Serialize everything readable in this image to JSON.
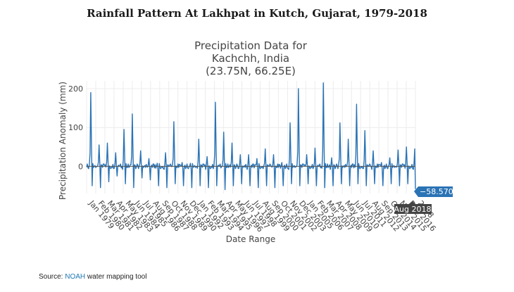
{
  "header": {
    "title": "Rainfall Pattern At Lakhpat in Kutch, Gujarat, 1979-2018"
  },
  "source": {
    "prefix": "Source: ",
    "link": "NOAH",
    "suffix": " water mapping tool"
  },
  "colors": {
    "series": "#2a73b5",
    "hover_bg": "#2a73b5",
    "hover_date_bg": "#444444",
    "grid": "#ececec"
  },
  "chart_data": {
    "type": "line",
    "title_lines": [
      "Precipitation Data for",
      "Kachchh, India",
      "(23.75N, 66.25E)"
    ],
    "xlabel": "Date Range",
    "ylabel": "Precipitation Anomaly (mm)",
    "ylim": [
      -70,
      220
    ],
    "yticks": [
      0,
      100,
      200
    ],
    "x_tick_labels": [
      "Jan 1979",
      "Feb 1980",
      "Mar 1981",
      "Apr 1982",
      "May 1983",
      "Jun 1984",
      "Jul 1985",
      "Aug 1986",
      "Sep 1987",
      "Oct 1988",
      "Nov 1989",
      "Dec 1990",
      "Jan 1992",
      "Feb 1993",
      "Mar 1994",
      "Apr 1995",
      "May 1996",
      "Jun 1997",
      "Jul 1998",
      "Aug 1999",
      "Sep 2000",
      "Oct 2001",
      "Nov 2002",
      "Dec 2003",
      "Jan 2005",
      "Feb 2006",
      "Mar 2007",
      "Apr 2008",
      "May 2009",
      "Jun 2010",
      "Jul 2011",
      "Aug 2012",
      "Sep 2013",
      "Oct 2014",
      "Nov 2015",
      "Dec 2016",
      "2018"
    ],
    "series": [
      {
        "name": "Precipitation anomaly",
        "start": "1979-01",
        "end": "2018-08",
        "monsoon_peaks": [
          {
            "year": 1979,
            "peak": 190,
            "low": -50
          },
          {
            "year": 1980,
            "peak": 55,
            "low": -55
          },
          {
            "year": 1981,
            "peak": 60,
            "low": -40
          },
          {
            "year": 1982,
            "peak": 35,
            "low": -25
          },
          {
            "year": 1983,
            "peak": 95,
            "low": -45
          },
          {
            "year": 1984,
            "peak": 135,
            "low": -55
          },
          {
            "year": 1985,
            "peak": 40,
            "low": -30
          },
          {
            "year": 1986,
            "peak": 20,
            "low": -35
          },
          {
            "year": 1987,
            "peak": 8,
            "low": -50
          },
          {
            "year": 1988,
            "peak": 35,
            "low": -55
          },
          {
            "year": 1989,
            "peak": 115,
            "low": -45
          },
          {
            "year": 1990,
            "peak": 10,
            "low": -50
          },
          {
            "year": 1991,
            "peak": 8,
            "low": -55
          },
          {
            "year": 1992,
            "peak": 70,
            "low": -50
          },
          {
            "year": 1993,
            "peak": 25,
            "low": -55
          },
          {
            "year": 1994,
            "peak": 165,
            "low": -50
          },
          {
            "year": 1995,
            "peak": 88,
            "low": -60
          },
          {
            "year": 1996,
            "peak": 60,
            "low": -50
          },
          {
            "year": 1997,
            "peak": 30,
            "low": -45
          },
          {
            "year": 1998,
            "peak": 30,
            "low": -50
          },
          {
            "year": 1999,
            "peak": 20,
            "low": -55
          },
          {
            "year": 2000,
            "peak": 45,
            "low": -50
          },
          {
            "year": 2001,
            "peak": 30,
            "low": -55
          },
          {
            "year": 2002,
            "peak": 10,
            "low": -50
          },
          {
            "year": 2003,
            "peak": 112,
            "low": -45
          },
          {
            "year": 2004,
            "peak": 200,
            "low": -50
          },
          {
            "year": 2005,
            "peak": 30,
            "low": -45
          },
          {
            "year": 2006,
            "peak": 47,
            "low": -50
          },
          {
            "year": 2007,
            "peak": 215,
            "low": -55
          },
          {
            "year": 2008,
            "peak": 22,
            "low": -50
          },
          {
            "year": 2009,
            "peak": 112,
            "low": -45
          },
          {
            "year": 2010,
            "peak": 70,
            "low": -50
          },
          {
            "year": 2011,
            "peak": 160,
            "low": -45
          },
          {
            "year": 2012,
            "peak": 92,
            "low": -50
          },
          {
            "year": 2013,
            "peak": 40,
            "low": -45
          },
          {
            "year": 2014,
            "peak": 10,
            "low": -50
          },
          {
            "year": 2015,
            "peak": 22,
            "low": -45
          },
          {
            "year": 2016,
            "peak": 42,
            "low": -50
          },
          {
            "year": 2017,
            "peak": 50,
            "low": -45
          },
          {
            "year": 2018,
            "peak": 45,
            "low": -58.5708
          }
        ]
      }
    ],
    "hover": {
      "value": "−58.5708",
      "date": "Aug 2018"
    }
  }
}
